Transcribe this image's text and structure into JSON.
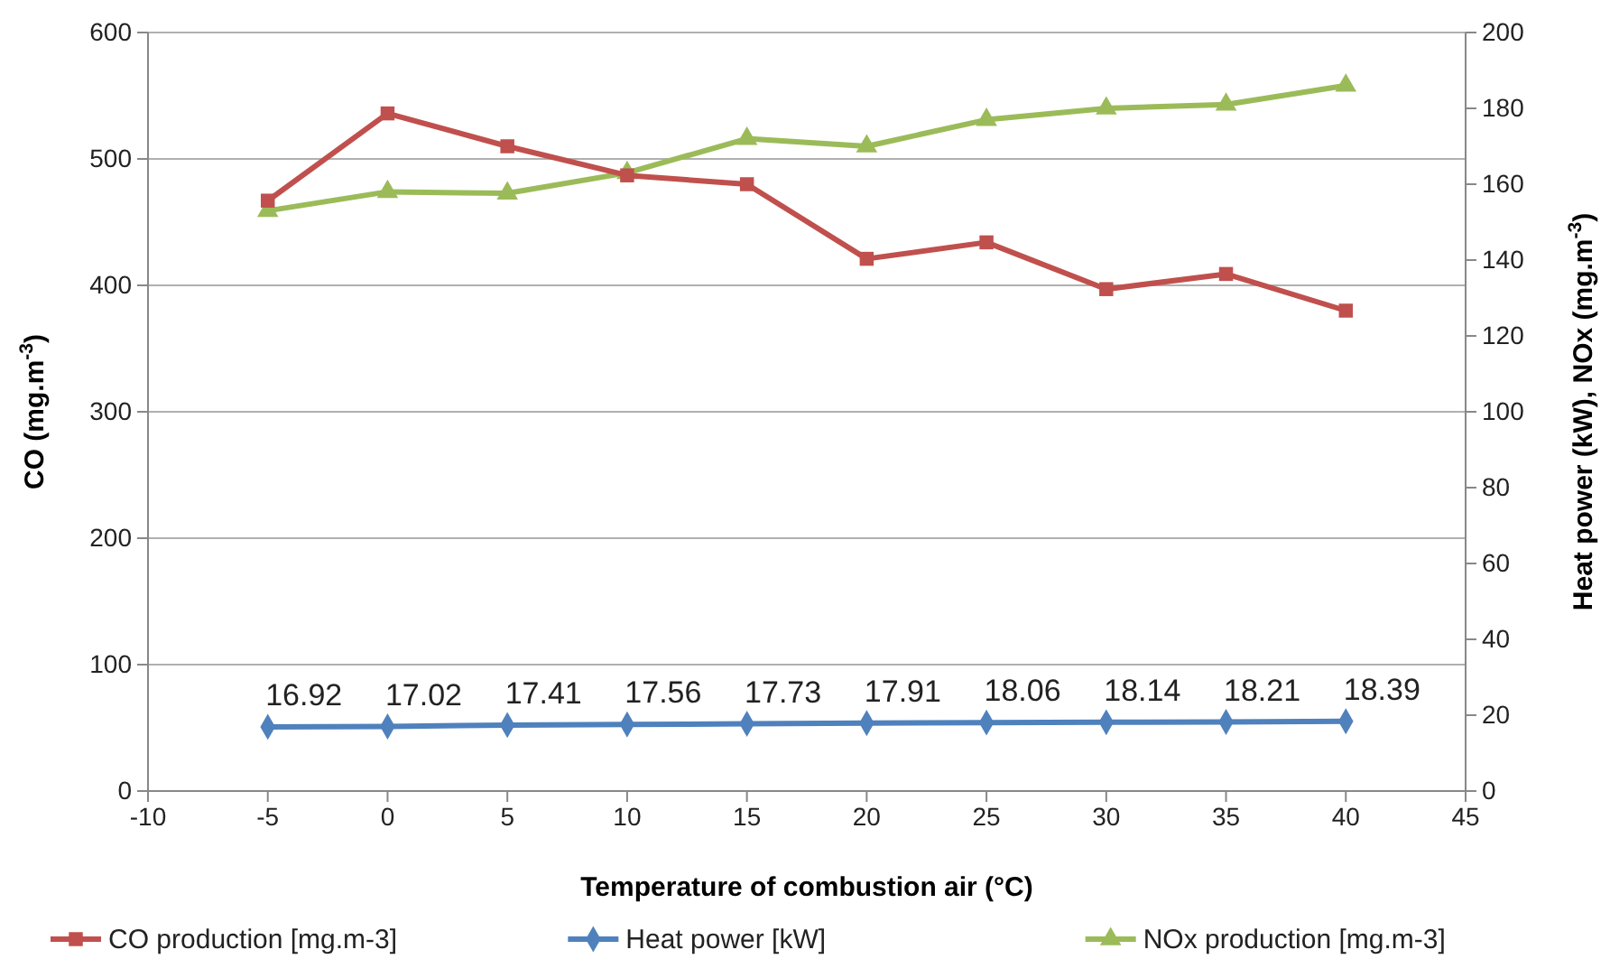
{
  "chart_data": {
    "type": "line",
    "xlabel": "Temperature of combustion air (°C)",
    "ylabel": "CO (mg.m$^{-3}$)",
    "y2label": "Heat power (kW), NOx (mg.m$^{-3}$)",
    "x": [
      -5,
      0,
      5,
      10,
      15,
      20,
      25,
      30,
      35,
      40
    ],
    "xlim": [
      -10,
      45
    ],
    "xticks": [
      -10,
      -5,
      0,
      5,
      10,
      15,
      20,
      25,
      30,
      35,
      40,
      45
    ],
    "ylim": [
      0,
      600
    ],
    "yticks": [
      0,
      100,
      200,
      300,
      400,
      500,
      600
    ],
    "y2lim": [
      0,
      200
    ],
    "y2ticks": [
      0,
      20,
      40,
      60,
      80,
      100,
      120,
      140,
      160,
      180,
      200
    ],
    "grid": "y",
    "legend": "bottom",
    "series": [
      {
        "name": "CO production [mg.m-3]",
        "color": "#c0504d",
        "marker": "square",
        "values": [
          467,
          536,
          510,
          487,
          480,
          421,
          434,
          397,
          409,
          380
        ]
      },
      {
        "name": "Heat power [kW]",
        "color": "#4f81bd",
        "marker": "diamond",
        "axis": "y2",
        "values": [
          16.92,
          17.02,
          17.41,
          17.56,
          17.73,
          17.91,
          18.06,
          18.14,
          18.21,
          18.39
        ],
        "value_labels": [
          "16.92",
          "17.02",
          "17.41",
          "17.56",
          "17.73",
          "17.91",
          "18.06",
          "18.14",
          "18.21",
          "18.39"
        ]
      },
      {
        "name": "NOx production [mg.m-3]",
        "color": "#9bbb59",
        "marker": "triangle",
        "axis": "y2",
        "values": [
          153,
          158,
          157.6,
          163,
          172,
          170,
          177,
          180,
          181,
          186
        ]
      }
    ]
  }
}
